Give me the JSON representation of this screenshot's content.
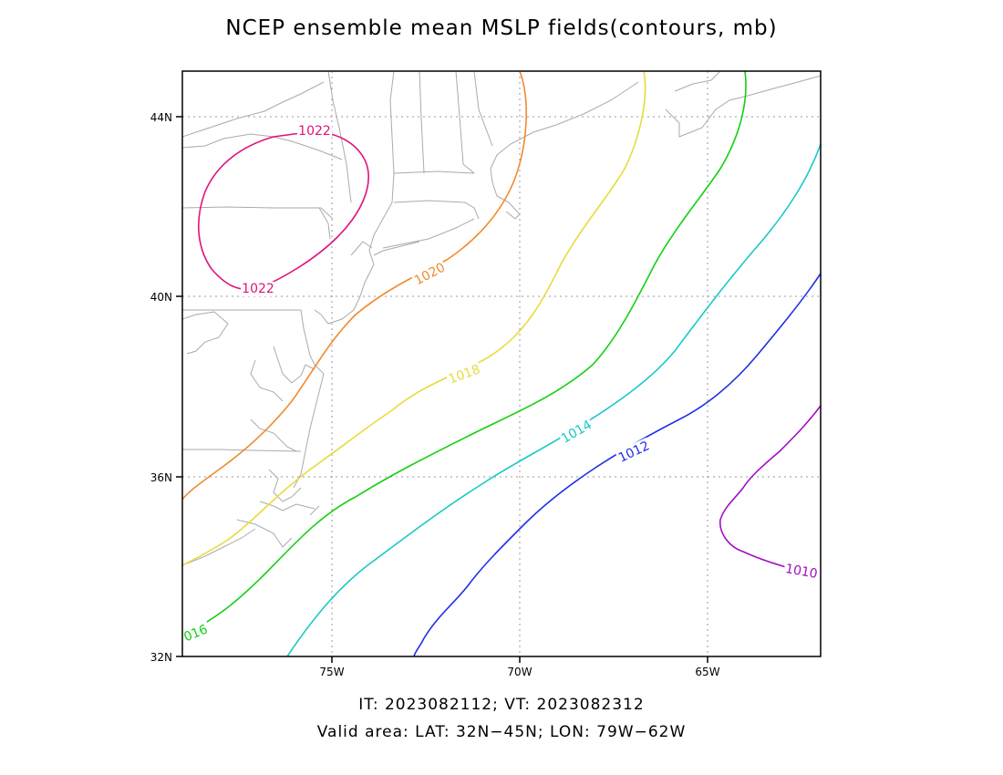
{
  "title": "NCEP ensemble mean MSLP fields(contours, mb)",
  "footer": {
    "line1": "IT: 2023082112; VT: 2023082312",
    "line2": "Valid area: LAT: 32N−45N; LON: 79W−62W"
  },
  "axes": {
    "y_ticks": [
      "44N",
      "40N",
      "36N",
      "32N"
    ],
    "x_ticks": [
      "75W",
      "70W",
      "65W"
    ]
  },
  "contours": [
    {
      "label": "1022",
      "color": "#e0127e"
    },
    {
      "label": "1020",
      "color": "#f08a2e"
    },
    {
      "label": "1018",
      "color": "#e6dc3c"
    },
    {
      "label": "016",
      "color": "#14d014"
    },
    {
      "label": "1014",
      "color": "#18c8c8"
    },
    {
      "label": "1012",
      "color": "#2030e8"
    },
    {
      "label": "1010",
      "color": "#a010c0"
    }
  ]
}
